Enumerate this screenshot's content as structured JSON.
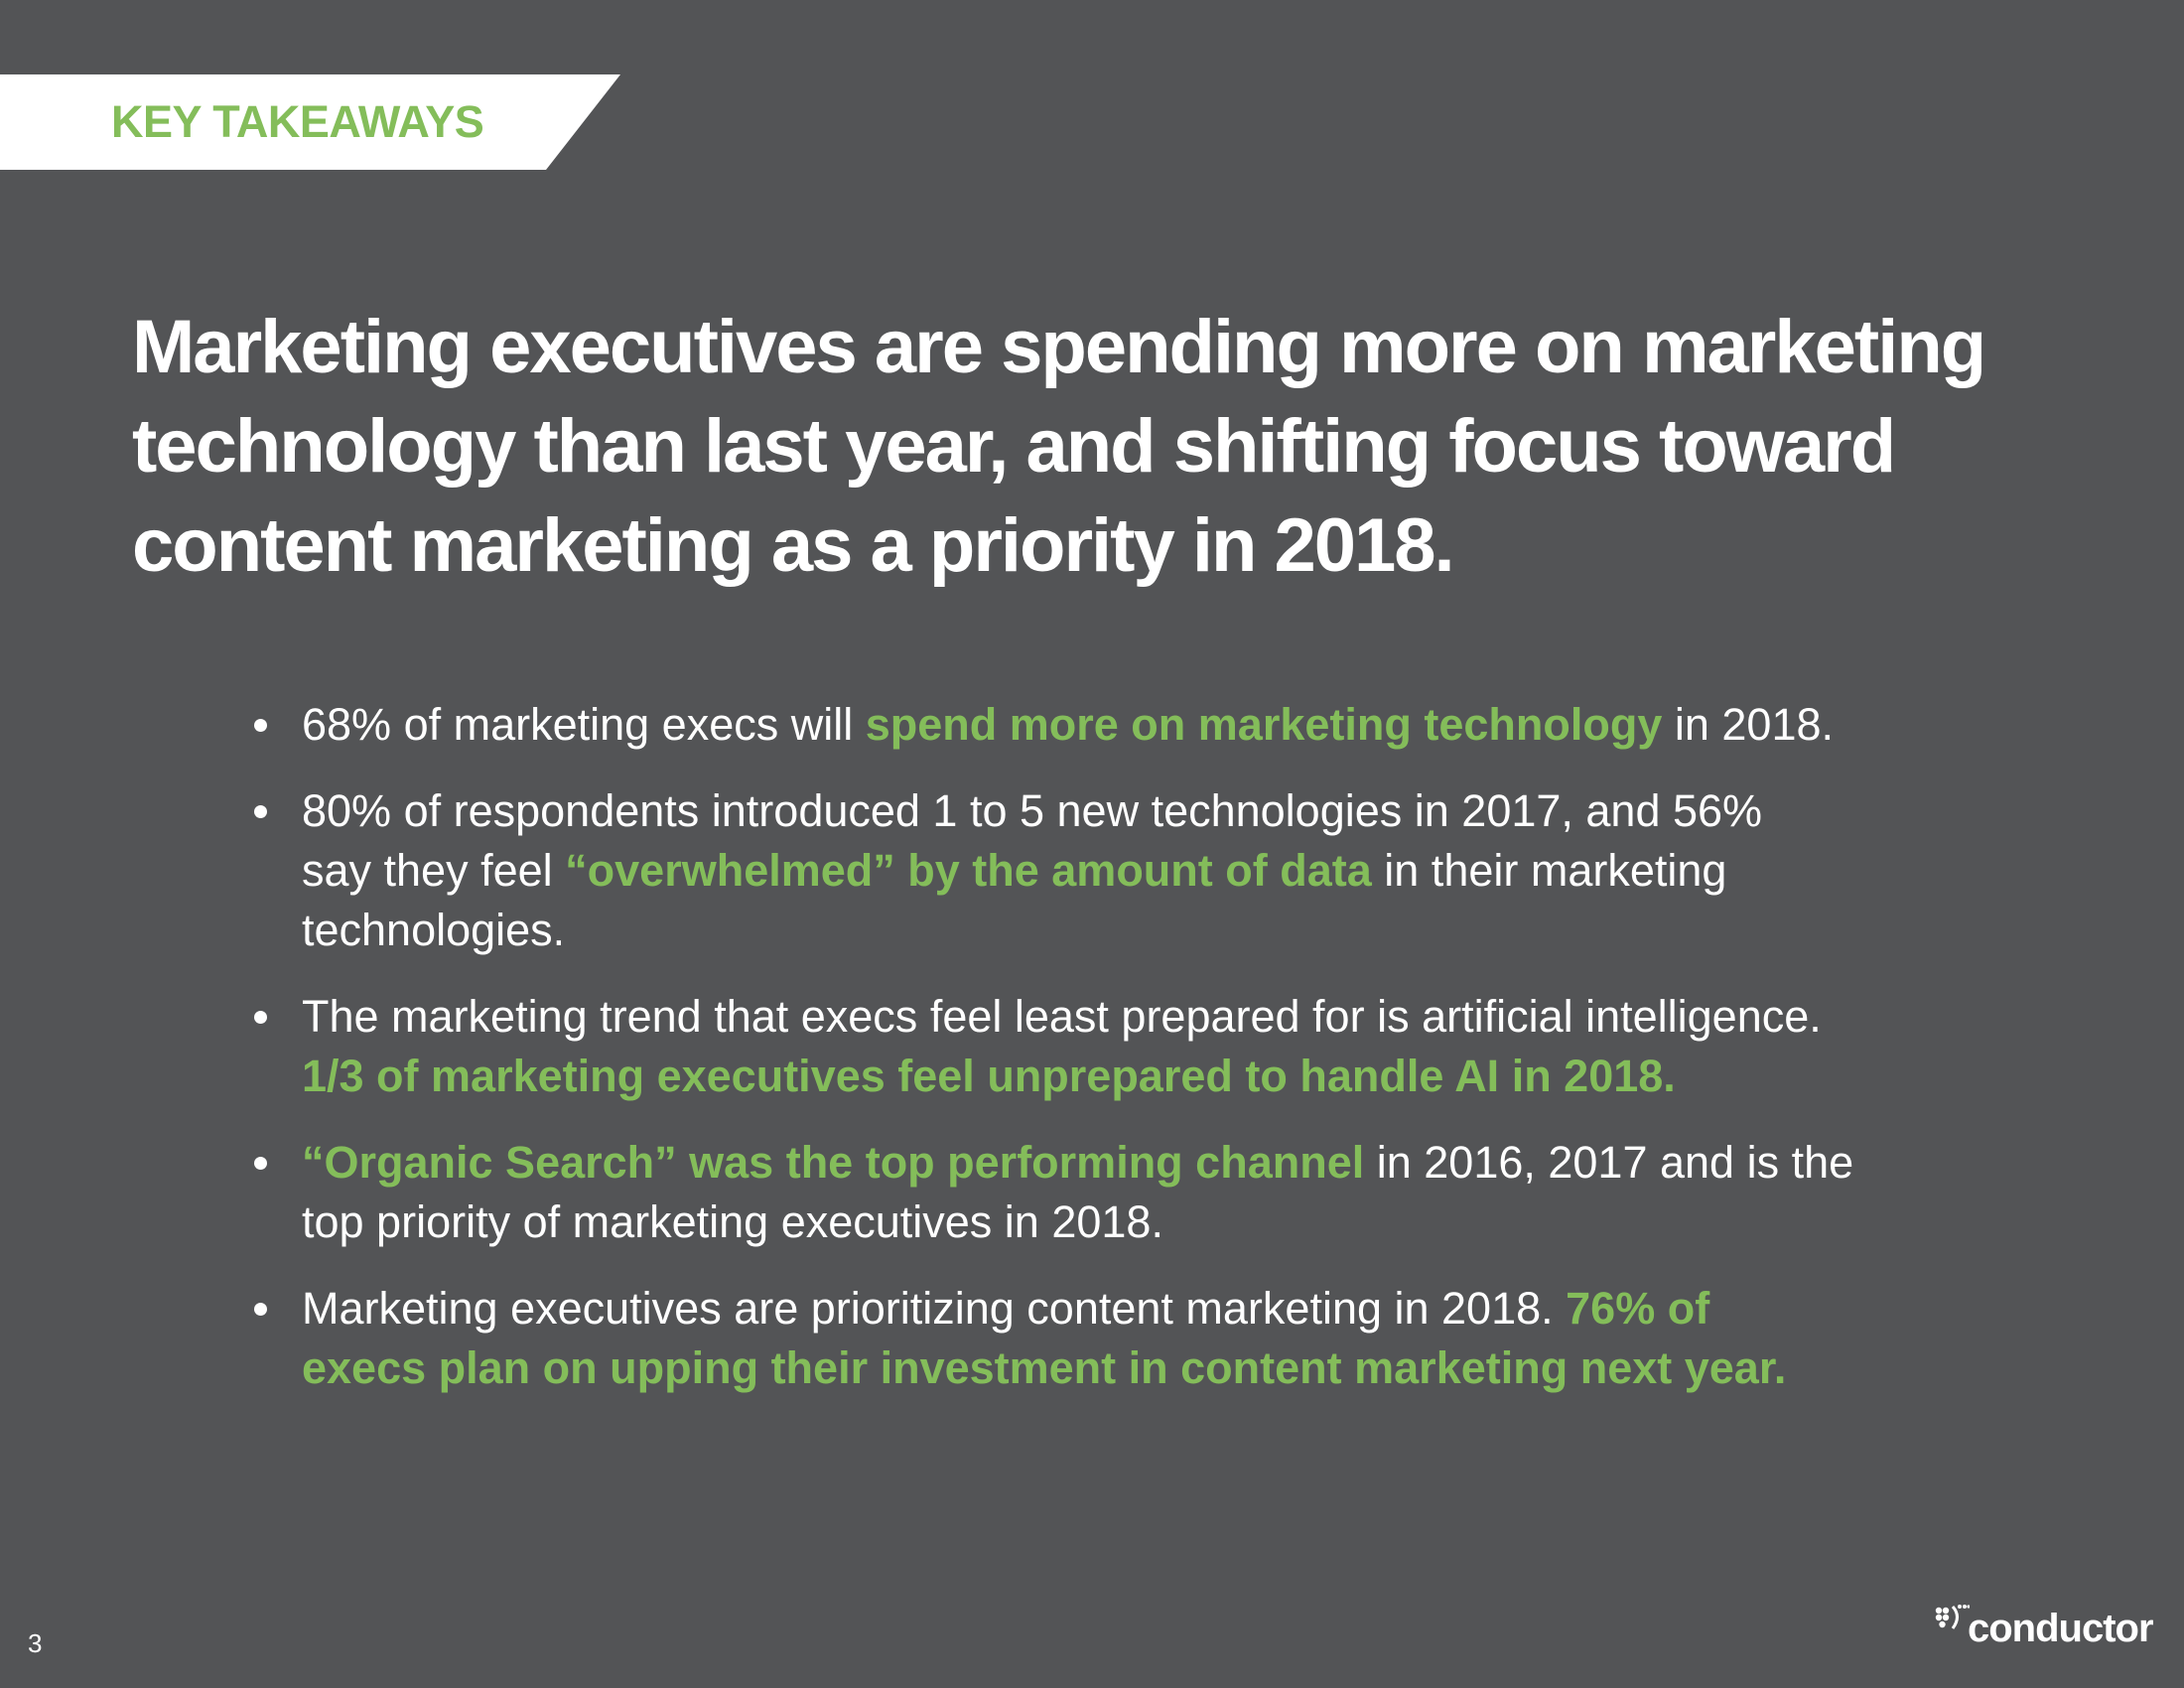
{
  "tag": {
    "label": "KEY TAKEAWAYS"
  },
  "headline": {
    "lines": [
      "Marketing executives are spending more on marketing",
      "technology than last year, and shifting focus toward",
      "content marketing as a priority in 2018."
    ]
  },
  "bullets": [
    {
      "lines": [
        [
          {
            "text": "68% of marketing execs will ",
            "highlight": false
          },
          {
            "text": "spend more on marketing technology",
            "highlight": true
          },
          {
            "text": " in 2018.",
            "highlight": false
          }
        ]
      ]
    },
    {
      "lines": [
        [
          {
            "text": "80% of respondents introduced 1 to 5 new technologies in 2017, and 56%",
            "highlight": false
          }
        ],
        [
          {
            "text": "say they feel ",
            "highlight": false
          },
          {
            "text": "“overwhelmed” by the amount of data",
            "highlight": true
          },
          {
            "text": " in their marketing",
            "highlight": false
          }
        ],
        [
          {
            "text": "technologies.",
            "highlight": false
          }
        ]
      ]
    },
    {
      "lines": [
        [
          {
            "text": "The marketing trend that execs feel least prepared for is artificial intelligence.",
            "highlight": false
          }
        ],
        [
          {
            "text": "1/3 of marketing executives feel unprepared to handle AI in 2018.",
            "highlight": true
          }
        ]
      ]
    },
    {
      "lines": [
        [
          {
            "text": "“Organic Search” was the top performing channel",
            "highlight": true
          },
          {
            "text": " in 2016, 2017 and is the",
            "highlight": false
          }
        ],
        [
          {
            "text": "top priority of marketing executives in 2018.",
            "highlight": false
          }
        ]
      ]
    },
    {
      "lines": [
        [
          {
            "text": "Marketing executives are prioritizing content marketing in 2018. ",
            "highlight": false
          },
          {
            "text": "76% of",
            "highlight": true
          }
        ],
        [
          {
            "text": "execs plan on upping their investment in content marketing next year.",
            "highlight": true
          }
        ]
      ]
    }
  ],
  "footer": {
    "page_number": "3",
    "logo_text": "conductor",
    "logo_icon": "conductor-logo-icon"
  },
  "colors": {
    "background": "#535456",
    "accent": "#84bd5a",
    "text": "#ffffff"
  }
}
